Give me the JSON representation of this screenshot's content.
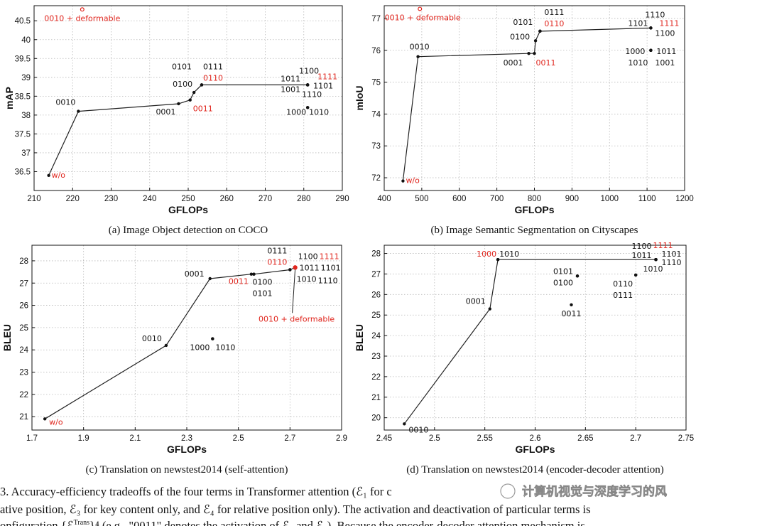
{
  "colors": {
    "highlight": "#e0261e",
    "text": "#111111",
    "line": "#222222",
    "grid": "#b9b9b9"
  },
  "chart_data": [
    {
      "type": "line",
      "caption": "(a) Image Object detection on COCO",
      "xlabel": "GFLOPs",
      "ylabel": "mAP",
      "xlim": [
        210,
        290
      ],
      "ylim": [
        36,
        40.9
      ],
      "xticks": [
        210,
        220,
        230,
        240,
        250,
        260,
        270,
        280,
        290
      ],
      "xtick_labels": [
        "210",
        "220",
        "230",
        "240",
        "250",
        "260",
        "270",
        "280",
        "290"
      ],
      "yticks": [
        36.5,
        37,
        37.5,
        38,
        38.5,
        39,
        39.5,
        40,
        40.5
      ],
      "ytick_labels": [
        "36.5",
        "37",
        "37.5",
        "38",
        "38.5",
        "39",
        "39.5",
        "40",
        "40.5"
      ],
      "frontier": [
        [
          213.8,
          36.4
        ],
        [
          221.5,
          38.1
        ],
        [
          247.5,
          38.3
        ],
        [
          250.5,
          38.4
        ],
        [
          251.5,
          38.6
        ],
        [
          253.5,
          38.8
        ],
        [
          281,
          38.8
        ]
      ],
      "points": [
        {
          "x": 213.8,
          "y": 36.4,
          "label": "w/o",
          "color": "red",
          "lx": 4,
          "ly": 3,
          "anchor": "start"
        },
        {
          "x": 221.5,
          "y": 38.1,
          "label": "0010",
          "color": "black",
          "lx": -4,
          "ly": -9,
          "anchor": "end"
        },
        {
          "x": 247.5,
          "y": 38.3,
          "label": "0001",
          "color": "black",
          "lx": -4,
          "ly": 15,
          "anchor": "end"
        },
        {
          "x": 250.5,
          "y": 38.4,
          "label": "0011",
          "color": "red",
          "lx": 4,
          "ly": 16,
          "anchor": "start"
        },
        {
          "x": 251.5,
          "y": 38.6,
          "label": "0100",
          "color": "black",
          "lx": -2,
          "ly": -8,
          "anchor": "end"
        },
        {
          "x": 253.5,
          "y": 38.8,
          "label": "0101",
          "color": "black",
          "lx": -14,
          "ly": -22,
          "anchor": "end"
        },
        {
          "x": 253.5,
          "y": 38.8,
          "label": "0110",
          "color": "red",
          "lx": 2,
          "ly": -6,
          "anchor": "start"
        },
        {
          "x": 253.5,
          "y": 38.8,
          "label": "0111",
          "color": "black",
          "lx": 2,
          "ly": -22,
          "anchor": "start"
        },
        {
          "x": 281,
          "y": 38.8,
          "label": "1111",
          "color": "red",
          "lx": 14,
          "ly": -8,
          "anchor": "start"
        },
        {
          "x": 281,
          "y": 38.8,
          "label": "1100",
          "color": "black",
          "lx": -12,
          "ly": -16,
          "anchor": "start"
        },
        {
          "x": 281,
          "y": 38.8,
          "label": "1011",
          "color": "black",
          "lx": -10,
          "ly": -5,
          "anchor": "end"
        },
        {
          "x": 281,
          "y": 38.8,
          "label": "1101",
          "color": "black",
          "lx": 8,
          "ly": 5,
          "anchor": "start"
        },
        {
          "x": 281,
          "y": 38.8,
          "label": "1001",
          "color": "black",
          "lx": -10,
          "ly": 10,
          "anchor": "end"
        },
        {
          "x": 281,
          "y": 38.8,
          "label": "1110",
          "color": "black",
          "lx": -8,
          "ly": 17,
          "anchor": "start"
        },
        {
          "x": 281,
          "y": 38.2,
          "label": "1000",
          "color": "black",
          "lx": -2,
          "ly": 10,
          "anchor": "end"
        },
        {
          "x": 281,
          "y": 38.2,
          "label": "1010",
          "color": "black",
          "lx": 2,
          "ly": 10,
          "anchor": "start"
        },
        {
          "x": 222.5,
          "y": 40.8,
          "label": "0010 + deformable",
          "color": "red",
          "lx": 0,
          "ly": 16,
          "anchor": "middle",
          "open": true
        }
      ]
    },
    {
      "type": "line",
      "caption": "(b) Image Semantic Segmentation on Cityscapes",
      "xlabel": "GFLOPs",
      "ylabel": "mIoU",
      "xlim": [
        400,
        1200
      ],
      "ylim": [
        71.6,
        77.4
      ],
      "xticks": [
        400,
        500,
        600,
        700,
        800,
        900,
        1000,
        1100,
        1200
      ],
      "xtick_labels": [
        "400",
        "500",
        "600",
        "700",
        "800",
        "900",
        "1000",
        "1100",
        "1200"
      ],
      "yticks": [
        72,
        73,
        74,
        75,
        76,
        77
      ],
      "ytick_labels": [
        "72",
        "73",
        "74",
        "75",
        "76",
        "77"
      ],
      "frontier": [
        [
          450,
          71.9
        ],
        [
          490,
          75.8
        ],
        [
          785,
          75.9
        ],
        [
          800,
          75.9
        ],
        [
          803,
          76.3
        ],
        [
          815,
          76.6
        ],
        [
          1110,
          76.7
        ]
      ],
      "points": [
        {
          "x": 450,
          "y": 71.9,
          "label": "w/o",
          "color": "red",
          "lx": 4,
          "ly": 3,
          "anchor": "start"
        },
        {
          "x": 490,
          "y": 75.8,
          "label": "0010",
          "color": "black",
          "lx": -12,
          "ly": -10,
          "anchor": "start"
        },
        {
          "x": 785,
          "y": 75.9,
          "label": "0001",
          "color": "black",
          "lx": -8,
          "ly": 17,
          "anchor": "end"
        },
        {
          "x": 800,
          "y": 75.9,
          "label": "0011",
          "color": "red",
          "lx": 2,
          "ly": 17,
          "anchor": "start"
        },
        {
          "x": 803,
          "y": 76.3,
          "label": "0100",
          "color": "black",
          "lx": -8,
          "ly": -2,
          "anchor": "end"
        },
        {
          "x": 815,
          "y": 76.6,
          "label": "0101",
          "color": "black",
          "lx": -10,
          "ly": -9,
          "anchor": "end"
        },
        {
          "x": 815,
          "y": 76.6,
          "label": "0110",
          "color": "red",
          "lx": 6,
          "ly": -7,
          "anchor": "start"
        },
        {
          "x": 815,
          "y": 76.6,
          "label": "0111",
          "color": "black",
          "lx": 6,
          "ly": -23,
          "anchor": "start"
        },
        {
          "x": 1110,
          "y": 76.7,
          "label": "1110",
          "color": "black",
          "lx": -8,
          "ly": -15,
          "anchor": "start"
        },
        {
          "x": 1110,
          "y": 76.7,
          "label": "1111",
          "color": "red",
          "lx": 12,
          "ly": -3,
          "anchor": "start"
        },
        {
          "x": 1110,
          "y": 76.7,
          "label": "1101",
          "color": "black",
          "lx": -4,
          "ly": -3,
          "anchor": "end"
        },
        {
          "x": 1110,
          "y": 76.7,
          "label": "1100",
          "color": "black",
          "lx": 6,
          "ly": 11,
          "anchor": "start"
        },
        {
          "x": 1110,
          "y": 76.0,
          "label": "1000",
          "color": "black",
          "lx": -8,
          "ly": 5,
          "anchor": "end"
        },
        {
          "x": 1110,
          "y": 76.0,
          "label": "1011",
          "color": "black",
          "lx": 8,
          "ly": 5,
          "anchor": "start"
        },
        {
          "x": 1110,
          "y": 76.0,
          "label": "1010",
          "color": "black",
          "lx": -4,
          "ly": 21,
          "anchor": "end"
        },
        {
          "x": 1110,
          "y": 76.0,
          "label": "1001",
          "color": "black",
          "lx": 6,
          "ly": 21,
          "anchor": "start"
        },
        {
          "x": 495,
          "y": 77.3,
          "label": "0010 + deformable",
          "color": "red",
          "lx": 4,
          "ly": 16,
          "anchor": "middle",
          "open": true
        }
      ]
    },
    {
      "type": "line",
      "caption": "(c) Translation on newstest2014 (self-attention)",
      "xlabel": "GFLOPs",
      "ylabel": "BLEU",
      "xlim": [
        1.7,
        2.9
      ],
      "ylim": [
        20.4,
        28.7
      ],
      "xticks": [
        1.7,
        1.9,
        2.1,
        2.3,
        2.5,
        2.7,
        2.9
      ],
      "xtick_labels": [
        "1.7",
        "1.9",
        "2.1",
        "2.3",
        "2.5",
        "2.7",
        "2.9"
      ],
      "yticks": [
        21,
        22,
        23,
        24,
        25,
        26,
        27,
        28
      ],
      "ytick_labels": [
        "21",
        "22",
        "23",
        "24",
        "25",
        "26",
        "27",
        "28"
      ],
      "frontier": [
        [
          1.75,
          20.9
        ],
        [
          2.22,
          24.2
        ],
        [
          2.39,
          27.2
        ],
        [
          2.55,
          27.4
        ],
        [
          2.56,
          27.4
        ],
        [
          2.7,
          27.6
        ],
        [
          2.72,
          27.7
        ]
      ],
      "points": [
        {
          "x": 1.75,
          "y": 20.9,
          "label": "w/o",
          "color": "red",
          "lx": 6,
          "ly": 8,
          "anchor": "start"
        },
        {
          "x": 2.22,
          "y": 24.2,
          "label": "0010",
          "color": "black",
          "lx": -6,
          "ly": -6,
          "anchor": "end"
        },
        {
          "x": 2.39,
          "y": 27.2,
          "label": "0001",
          "color": "black",
          "lx": -8,
          "ly": -3,
          "anchor": "end"
        },
        {
          "x": 2.55,
          "y": 27.4,
          "label": "0011",
          "color": "red",
          "lx": -4,
          "ly": 14,
          "anchor": "end"
        },
        {
          "x": 2.56,
          "y": 27.4,
          "label": "0100",
          "color": "black",
          "lx": -2,
          "ly": 15,
          "anchor": "start"
        },
        {
          "x": 2.56,
          "y": 27.4,
          "label": "0101",
          "color": "black",
          "lx": -2,
          "ly": 31,
          "anchor": "start"
        },
        {
          "x": 2.7,
          "y": 27.6,
          "label": "0110",
          "color": "red",
          "lx": -4,
          "ly": -7,
          "anchor": "end"
        },
        {
          "x": 2.7,
          "y": 27.6,
          "label": "0111",
          "color": "black",
          "lx": -4,
          "ly": -23,
          "anchor": "end"
        },
        {
          "x": 2.72,
          "y": 27.7,
          "label": "1100",
          "color": "black",
          "lx": 4,
          "ly": -12,
          "anchor": "start"
        },
        {
          "x": 2.72,
          "y": 27.7,
          "label": "1111",
          "color": "red",
          "lx": 34,
          "ly": -12,
          "anchor": "start"
        },
        {
          "x": 2.72,
          "y": 27.7,
          "label": "1011",
          "color": "black",
          "lx": 6,
          "ly": 4,
          "anchor": "start"
        },
        {
          "x": 2.72,
          "y": 27.7,
          "label": "1101",
          "color": "black",
          "lx": 36,
          "ly": 4,
          "anchor": "start"
        },
        {
          "x": 2.72,
          "y": 27.7,
          "label": "1010",
          "color": "black",
          "lx": 2,
          "ly": 20,
          "anchor": "start"
        },
        {
          "x": 2.72,
          "y": 27.7,
          "label": "1110",
          "color": "black",
          "lx": 32,
          "ly": 22,
          "anchor": "start"
        },
        {
          "x": 2.4,
          "y": 24.5,
          "label": "1000",
          "color": "black",
          "lx": -4,
          "ly": 16,
          "anchor": "end"
        },
        {
          "x": 2.4,
          "y": 24.5,
          "label": "1010",
          "color": "black",
          "lx": 4,
          "ly": 16,
          "anchor": "start"
        },
        {
          "x": 2.72,
          "y": 27.7,
          "label": "0010 + deformable",
          "color": "red",
          "lx": 2,
          "ly": 76,
          "anchor": "middle",
          "callout": true
        }
      ]
    },
    {
      "type": "line",
      "caption": "(d) Translation on newstest2014 (encoder-decoder attention)",
      "xlabel": "GFLOPs",
      "ylabel": "BLEU",
      "xlim": [
        2.45,
        2.75
      ],
      "ylim": [
        19.4,
        28.4
      ],
      "xticks": [
        2.45,
        2.5,
        2.55,
        2.6,
        2.65,
        2.7,
        2.75
      ],
      "xtick_labels": [
        "2.45",
        "2.5",
        "2.55",
        "2.6",
        "2.65",
        "2.7",
        "2.75"
      ],
      "yticks": [
        20,
        21,
        22,
        23,
        24,
        25,
        26,
        27,
        28
      ],
      "ytick_labels": [
        "20",
        "21",
        "22",
        "23",
        "24",
        "25",
        "26",
        "27",
        "28"
      ],
      "frontier": [
        [
          2.47,
          19.7
        ],
        [
          2.555,
          25.3
        ],
        [
          2.563,
          27.7
        ],
        [
          2.72,
          27.7
        ]
      ],
      "points": [
        {
          "x": 2.47,
          "y": 19.7,
          "label": "0010",
          "color": "black",
          "lx": 6,
          "ly": 12,
          "anchor": "start"
        },
        {
          "x": 2.555,
          "y": 25.3,
          "label": "0001",
          "color": "black",
          "lx": -6,
          "ly": -7,
          "anchor": "end"
        },
        {
          "x": 2.563,
          "y": 27.7,
          "label": "1000",
          "color": "red",
          "lx": -2,
          "ly": -4,
          "anchor": "end"
        },
        {
          "x": 2.563,
          "y": 27.7,
          "label": "1010",
          "color": "black",
          "lx": 2,
          "ly": -4,
          "anchor": "start"
        },
        {
          "x": 2.72,
          "y": 27.7,
          "label": "1100",
          "color": "black",
          "lx": -34,
          "ly": -15,
          "anchor": "start"
        },
        {
          "x": 2.72,
          "y": 27.7,
          "label": "1111",
          "color": "red",
          "lx": -4,
          "ly": -16,
          "anchor": "start"
        },
        {
          "x": 2.72,
          "y": 27.7,
          "label": "1011",
          "color": "black",
          "lx": -34,
          "ly": -2,
          "anchor": "start"
        },
        {
          "x": 2.72,
          "y": 27.7,
          "label": "1101",
          "color": "black",
          "lx": 8,
          "ly": -4,
          "anchor": "start"
        },
        {
          "x": 2.72,
          "y": 27.7,
          "label": "1110",
          "color": "black",
          "lx": 8,
          "ly": 8,
          "anchor": "start"
        },
        {
          "x": 2.72,
          "y": 27.7,
          "label": "1010",
          "color": "black",
          "lx": -18,
          "ly": 17,
          "anchor": "start"
        },
        {
          "x": 2.642,
          "y": 26.9,
          "label": "0101",
          "color": "black",
          "lx": -6,
          "ly": -3,
          "anchor": "end"
        },
        {
          "x": 2.642,
          "y": 26.9,
          "label": "0100",
          "color": "black",
          "lx": -6,
          "ly": 13,
          "anchor": "end"
        },
        {
          "x": 2.7,
          "y": 26.95,
          "label": "0110",
          "color": "black",
          "lx": -4,
          "ly": 16,
          "anchor": "end"
        },
        {
          "x": 2.7,
          "y": 26.95,
          "label": "0111",
          "color": "black",
          "lx": -4,
          "ly": 32,
          "anchor": "end"
        },
        {
          "x": 2.636,
          "y": 25.5,
          "label": "0011",
          "color": "black",
          "lx": 0,
          "ly": 16,
          "anchor": "middle"
        }
      ]
    }
  ],
  "figure_caption": {
    "line1_start": "3. Accuracy-efficiency tradeoffs of the four terms in Transformer attention (",
    "e1": "ℰ₁ for c",
    "line2": "ative position, ℰ₃ for key content only, and ℰ₄ for relative position only).  The activation and deactivation of particular terms is",
    "line3": "onfiguration  {ℰ",
    "line3_sup": "Trans",
    "line3_rest": "}⁴    (e.g., \"0011\" denotes the activation of ℰ₃ and ℰ₄).  Because the encoder-decoder attention mechanism is"
  },
  "watermark": "计算机视觉与深度学习的风"
}
